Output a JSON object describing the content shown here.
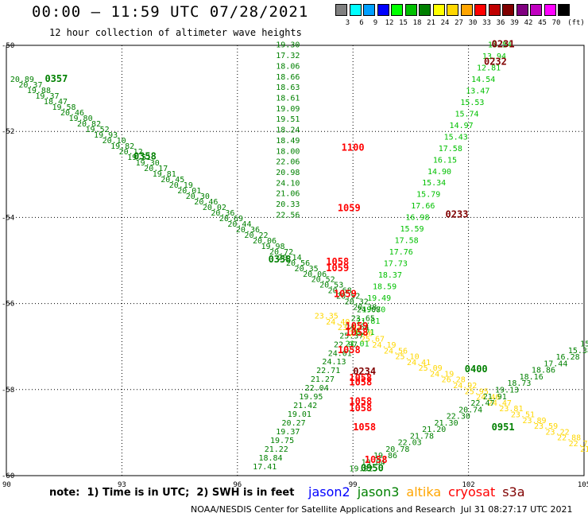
{
  "header": {
    "title": "00:00 – 11:59 UTC 07/28/2021",
    "subtitle": "12 hour collection of altimeter wave heights"
  },
  "legend": {
    "unit": "(ft)",
    "bins": [
      {
        "label": "3",
        "color": "#808080"
      },
      {
        "label": "6",
        "color": "#00ffff"
      },
      {
        "label": "9",
        "color": "#00a0ff"
      },
      {
        "label": "12",
        "color": "#0000ff"
      },
      {
        "label": "15",
        "color": "#00ff00"
      },
      {
        "label": "18",
        "color": "#00c000"
      },
      {
        "label": "21",
        "color": "#008000"
      },
      {
        "label": "24",
        "color": "#ffff00"
      },
      {
        "label": "27",
        "color": "#ffd700"
      },
      {
        "label": "30",
        "color": "#ffa500"
      },
      {
        "label": "33",
        "color": "#ff0000"
      },
      {
        "label": "36",
        "color": "#c00000"
      },
      {
        "label": "39",
        "color": "#800000"
      },
      {
        "label": "42",
        "color": "#800080"
      },
      {
        "label": "45",
        "color": "#c000c0"
      },
      {
        "label": "70",
        "color": "#ff00ff"
      },
      {
        "label": "",
        "color": "#000000"
      }
    ]
  },
  "footer": {
    "note": "note:  1) Time is in UTC;  2) SWH is in feet",
    "satellites": [
      {
        "name": "jason2",
        "color": "#0000ff"
      },
      {
        "name": "jason3",
        "color": "#008000"
      },
      {
        "name": "altika",
        "color": "#ffa500"
      },
      {
        "name": "cryosat",
        "color": "#ff0000"
      },
      {
        "name": "s3a",
        "color": "#800000"
      }
    ],
    "credit": "NOAA/NESDIS Center for Satellite Applications and Research",
    "timestamp": "Jul 31 08:27:17 UTC 2021"
  },
  "chart_data": {
    "type": "scatter",
    "xlim": [
      90,
      105
    ],
    "ylim": [
      -60,
      -50
    ],
    "xticks": [
      {
        "label": "90",
        "x": 90
      },
      {
        "label": "93",
        "x": 93
      },
      {
        "label": "96",
        "x": 96
      },
      {
        "label": "99",
        "x": 99
      },
      {
        "label": "102",
        "x": 102
      },
      {
        "label": "105",
        "x": 105
      }
    ],
    "yticks": [
      {
        "label": "-50",
        "y": -50
      },
      {
        "label": "-52",
        "y": -52
      },
      {
        "label": "-54",
        "y": -54
      },
      {
        "label": "-56",
        "y": -56
      },
      {
        "label": "-58",
        "y": -58
      },
      {
        "label": "-60",
        "y": -60
      }
    ],
    "grid": true,
    "times": [
      {
        "label": "0231",
        "lon": 102.6,
        "lat": -50.05,
        "color": "#800000"
      },
      {
        "label": "0232",
        "lon": 102.4,
        "lat": -50.45,
        "color": "#800000"
      },
      {
        "label": "0233",
        "lon": 101.4,
        "lat": -54.0,
        "color": "#800000"
      },
      {
        "label": "0234",
        "lon": 99.0,
        "lat": -57.65,
        "color": "#800000"
      },
      {
        "label": "0357",
        "lon": 91.0,
        "lat": -50.85,
        "color": "#008000"
      },
      {
        "label": "0358",
        "lon": 93.3,
        "lat": -52.65,
        "color": "#008000"
      },
      {
        "label": "0358",
        "lon": 96.8,
        "lat": -55.05,
        "color": "#008000"
      },
      {
        "label": "0400",
        "lon": 101.9,
        "lat": -57.6,
        "color": "#008000"
      },
      {
        "label": "0951",
        "lon": 102.6,
        "lat": -58.95,
        "color": "#008000"
      },
      {
        "label": "0950",
        "lon": 99.2,
        "lat": -59.9,
        "color": "#008000"
      },
      {
        "label": "1100",
        "lon": 98.7,
        "lat": -52.45,
        "color": "#ff0000"
      },
      {
        "label": "1059",
        "lon": 98.6,
        "lat": -53.85,
        "color": "#ff0000"
      },
      {
        "label": "1058",
        "lon": 98.3,
        "lat": -55.1,
        "color": "#ff0000"
      },
      {
        "label": "1059",
        "lon": 98.3,
        "lat": -55.25,
        "color": "#ff0000"
      },
      {
        "label": "1059",
        "lon": 98.5,
        "lat": -55.85,
        "color": "#ff0000"
      },
      {
        "label": "1059",
        "lon": 98.8,
        "lat": -56.6,
        "color": "#ff0000"
      },
      {
        "label": "1058",
        "lon": 98.8,
        "lat": -56.75,
        "color": "#ff0000"
      },
      {
        "label": "1058",
        "lon": 98.6,
        "lat": -57.15,
        "color": "#ff0000"
      },
      {
        "label": "1058",
        "lon": 98.9,
        "lat": -57.8,
        "color": "#ff0000"
      },
      {
        "label": "1058",
        "lon": 98.9,
        "lat": -57.9,
        "color": "#ff0000"
      },
      {
        "label": "1058",
        "lon": 98.9,
        "lat": -58.35,
        "color": "#ff0000"
      },
      {
        "label": "1058",
        "lon": 98.9,
        "lat": -58.5,
        "color": "#ff0000"
      },
      {
        "label": "1058",
        "lon": 99.0,
        "lat": -58.95,
        "color": "#ff0000"
      },
      {
        "label": "1058",
        "lon": 99.3,
        "lat": -59.7,
        "color": "#ff0000"
      }
    ],
    "tracks": [
      {
        "name": "descending pass NW to SE",
        "start": [
          90.1,
          -50.85
        ],
        "end": [
          99.0,
          -56.15
        ],
        "values": [
          "20.89",
          "20.37",
          "19.88",
          "19.37",
          "18.47",
          "19.58",
          "20.46",
          "19.80",
          "20.82",
          "19.52",
          "19.93",
          "20.10",
          "19.82",
          "20.12",
          "19.51",
          "19.30",
          "20.17",
          "19.81",
          "20.45",
          "20.19",
          "20.01",
          "20.30",
          "20.46",
          "20.02",
          "20.36",
          "20.69",
          "20.44",
          "20.36",
          "20.22",
          "20.06",
          "19.98",
          "20.72",
          "20.14",
          "20.56",
          "20.35",
          "20.06",
          "20.52",
          "20.53",
          "20.68",
          "20.52",
          "20.32",
          "20.38"
        ],
        "color": "#008000"
      },
      {
        "name": "descending pass continuation",
        "start": [
          98.0,
          -56.35
        ],
        "end": [
          104.9,
          -59.45
        ],
        "values": [
          "23.35",
          "24.40",
          "23.33",
          "24.46",
          "25.67",
          "24.19",
          "24.56",
          "25.10",
          "24.41",
          "25.09",
          "24.19",
          "26.28",
          "24.92",
          "25.95",
          "24.40",
          "24.47",
          "23.81",
          "23.51",
          "23.89",
          "23.59",
          "23.22",
          "22.88",
          "22.76",
          "21.89"
        ],
        "color": "#ffd700"
      },
      {
        "name": "ascending pass SW to NE upper",
        "start": [
          98.8,
          -57.0
        ],
        "end": [
          102.5,
          -50.05
        ],
        "values": [
          "21.01",
          "20.71",
          "21.81",
          "19.70",
          "19.49",
          "18.59",
          "18.37",
          "17.73",
          "17.76",
          "17.58",
          "15.59",
          "16.98",
          "17.66",
          "15.79",
          "15.34",
          "14.90",
          "16.15",
          "17.58",
          "15.43",
          "14.97",
          "15.74",
          "15.53",
          "13.47",
          "14.54",
          "12.81",
          "13.94",
          "13.54"
        ],
        "color": "#00c000"
      },
      {
        "name": "ascending pass lower",
        "start": [
          96.4,
          -59.85
        ],
        "end": [
          99.1,
          -56.2
        ],
        "values": [
          "17.41",
          "18.84",
          "21.22",
          "19.75",
          "19.37",
          "20.27",
          "19.01",
          "21.42",
          "19.95",
          "22.04",
          "21.27",
          "22.71",
          "24.13",
          "24.01",
          "22.97",
          "25.37",
          "24.64",
          "23.65",
          "24.08"
        ],
        "color": "#008000"
      },
      {
        "name": "ascending pass SE lower",
        "start": [
          98.9,
          -59.9
        ],
        "end": [
          104.9,
          -57.0
        ],
        "values": [
          "19.92",
          "19.04",
          "19.86",
          "20.78",
          "22.03",
          "21.78",
          "21.20",
          "21.30",
          "22.30",
          "20.74",
          "22.47",
          "21.91",
          "19.13",
          "18.73",
          "18.16",
          "18.86",
          "17.44",
          "16.28",
          "15.38",
          "15.91"
        ],
        "color": "#008000"
      },
      {
        "name": "north-south pass center",
        "start": [
          97.0,
          -50.05
        ],
        "end": [
          97.0,
          -54.0
        ],
        "values": [
          "19.30",
          "17.32",
          "18.06",
          "18.66",
          "18.63",
          "18.61",
          "19.09",
          "19.51",
          "18.24",
          "18.49",
          "18.00",
          "22.06",
          "20.98",
          "24.10",
          "21.06",
          "20.33",
          "22.56"
        ],
        "color": "#008000"
      }
    ]
  }
}
